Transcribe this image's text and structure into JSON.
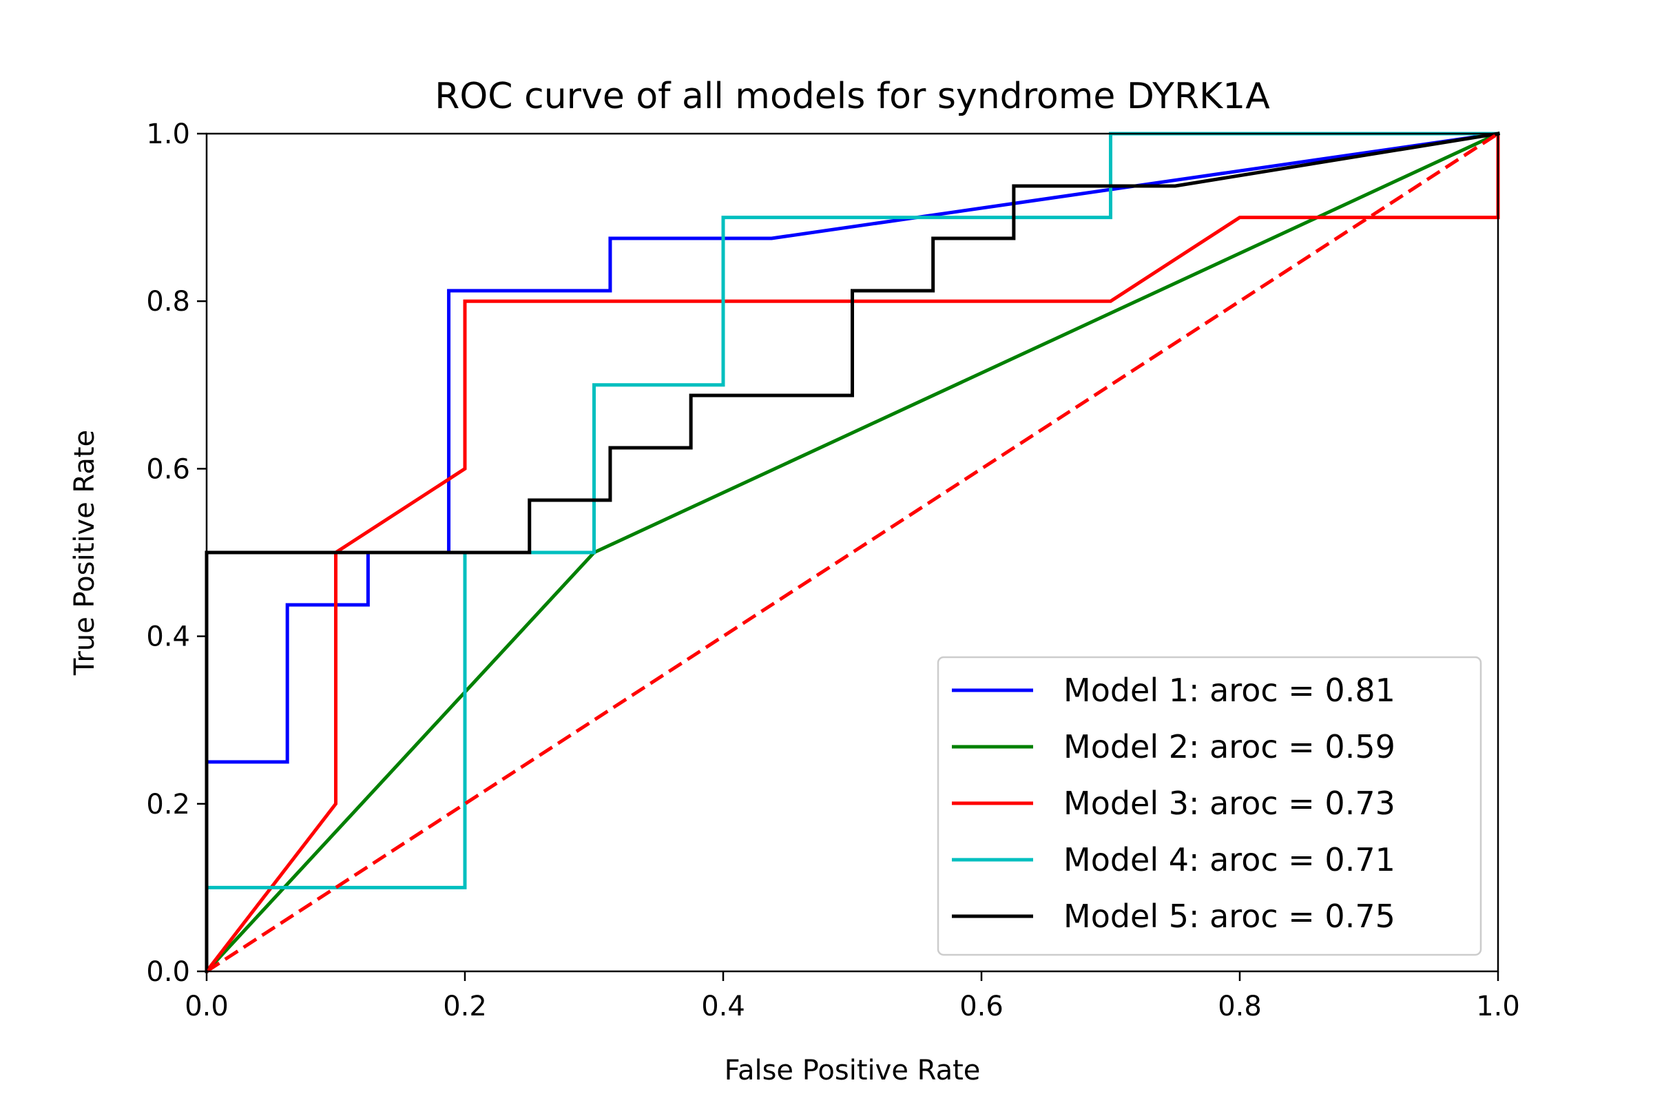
{
  "chart_data": {
    "type": "line",
    "title": "ROC curve of all models for syndrome DYRK1A",
    "xlabel": "False Positive Rate",
    "ylabel": "True Positive Rate",
    "xlim": [
      0.0,
      1.0
    ],
    "ylim": [
      0.0,
      1.0
    ],
    "xticks": [
      "0.0",
      "0.2",
      "0.4",
      "0.6",
      "0.8",
      "1.0"
    ],
    "yticks": [
      "0.0",
      "0.2",
      "0.4",
      "0.6",
      "0.8",
      "1.0"
    ],
    "grid": false,
    "legend_position": "bottom-right",
    "series": [
      {
        "name": "Model 1: aroc = 0.81",
        "color": "#0000ff",
        "x": [
          0,
          0,
          0.0625,
          0.0625,
          0.125,
          0.125,
          0.1875,
          0.1875,
          0.3125,
          0.3125,
          0.4375,
          1.0
        ],
        "y": [
          0,
          0.25,
          0.25,
          0.4375,
          0.4375,
          0.5,
          0.5,
          0.8125,
          0.8125,
          0.875,
          0.875,
          1.0
        ]
      },
      {
        "name": "Model 2: aroc = 0.59",
        "color": "#008000",
        "x": [
          0,
          0.3,
          1.0
        ],
        "y": [
          0,
          0.5,
          1.0
        ]
      },
      {
        "name": "Model 3: aroc = 0.73",
        "color": "#ff0000",
        "x": [
          0,
          0.1,
          0.1,
          0.2,
          0.2,
          0.7,
          0.8,
          1.0,
          1.0
        ],
        "y": [
          0,
          0.2,
          0.5,
          0.6,
          0.8,
          0.8,
          0.9,
          0.9,
          1.0
        ]
      },
      {
        "name": "Model 4: aroc = 0.71",
        "color": "#00bfbf",
        "x": [
          0,
          0,
          0.2,
          0.2,
          0.3,
          0.3,
          0.4,
          0.4,
          0.7,
          0.7,
          1.0
        ],
        "y": [
          0,
          0.1,
          0.1,
          0.5,
          0.5,
          0.7,
          0.7,
          0.9,
          0.9,
          1.0,
          1.0
        ]
      },
      {
        "name": "Model 5: aroc = 0.75",
        "color": "#000000",
        "x": [
          0,
          0,
          0.25,
          0.25,
          0.3125,
          0.3125,
          0.375,
          0.375,
          0.5,
          0.5,
          0.5625,
          0.5625,
          0.625,
          0.625,
          0.75,
          1.0
        ],
        "y": [
          0,
          0.5,
          0.5,
          0.5625,
          0.5625,
          0.625,
          0.625,
          0.6875,
          0.6875,
          0.8125,
          0.8125,
          0.875,
          0.875,
          0.9375,
          0.9375,
          1.0
        ]
      }
    ],
    "reference_line": {
      "color": "#ff0000",
      "style": "dashed",
      "x": [
        0,
        1
      ],
      "y": [
        0,
        1
      ]
    }
  }
}
